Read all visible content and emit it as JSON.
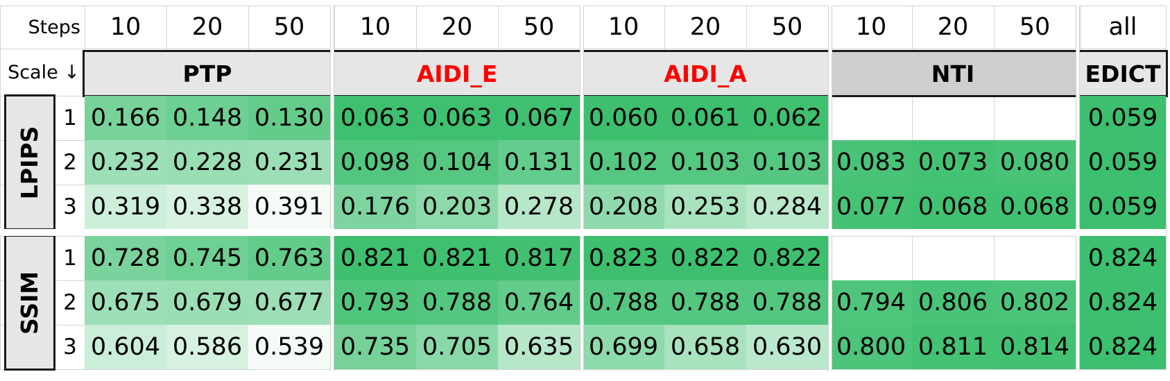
{
  "header": {
    "steps_label": "Steps",
    "scale_label": "Scale ↓",
    "steps": [
      "10",
      "20",
      "50",
      "10",
      "20",
      "50",
      "10",
      "20",
      "50",
      "10",
      "20",
      "50",
      "all"
    ]
  },
  "methods": [
    {
      "name": "PTP",
      "color": "#000000"
    },
    {
      "name": "AIDI_E",
      "color": "#ff0000"
    },
    {
      "name": "AIDI_A",
      "color": "#ff0000"
    },
    {
      "name": "NTI",
      "color": "#000000"
    },
    {
      "name": "EDICT",
      "color": "#000000"
    }
  ],
  "metrics": [
    {
      "name": "LPIPS",
      "rows": [
        {
          "scale": "1",
          "values": [
            "0.166",
            "0.148",
            "0.130",
            "0.063",
            "0.063",
            "0.067",
            "0.060",
            "0.061",
            "0.062",
            "",
            "",
            "",
            "0.059"
          ]
        },
        {
          "scale": "2",
          "values": [
            "0.232",
            "0.228",
            "0.231",
            "0.098",
            "0.104",
            "0.131",
            "0.102",
            "0.103",
            "0.103",
            "0.083",
            "0.073",
            "0.080",
            "0.059"
          ]
        },
        {
          "scale": "3",
          "values": [
            "0.319",
            "0.338",
            "0.391",
            "0.176",
            "0.203",
            "0.278",
            "0.208",
            "0.253",
            "0.284",
            "0.077",
            "0.068",
            "0.068",
            "0.059"
          ]
        }
      ]
    },
    {
      "name": "SSIM",
      "rows": [
        {
          "scale": "1",
          "values": [
            "0.728",
            "0.745",
            "0.763",
            "0.821",
            "0.821",
            "0.817",
            "0.823",
            "0.822",
            "0.822",
            "",
            "",
            "",
            "0.824"
          ]
        },
        {
          "scale": "2",
          "values": [
            "0.675",
            "0.679",
            "0.677",
            "0.793",
            "0.788",
            "0.764",
            "0.788",
            "0.788",
            "0.788",
            "0.794",
            "0.806",
            "0.802",
            "0.824"
          ]
        },
        {
          "scale": "3",
          "values": [
            "0.604",
            "0.586",
            "0.539",
            "0.735",
            "0.705",
            "0.635",
            "0.699",
            "0.658",
            "0.630",
            "0.800",
            "0.811",
            "0.814",
            "0.824"
          ]
        }
      ]
    }
  ],
  "colors": {
    "heat_best": "#3cbf6e",
    "heat_worst": "#ffffff",
    "box_fill": "#e6e6e6",
    "box_fill_dark": "#cfcfcf",
    "box_border": "#1a1a1a",
    "accent_red": "#ff0000"
  }
}
